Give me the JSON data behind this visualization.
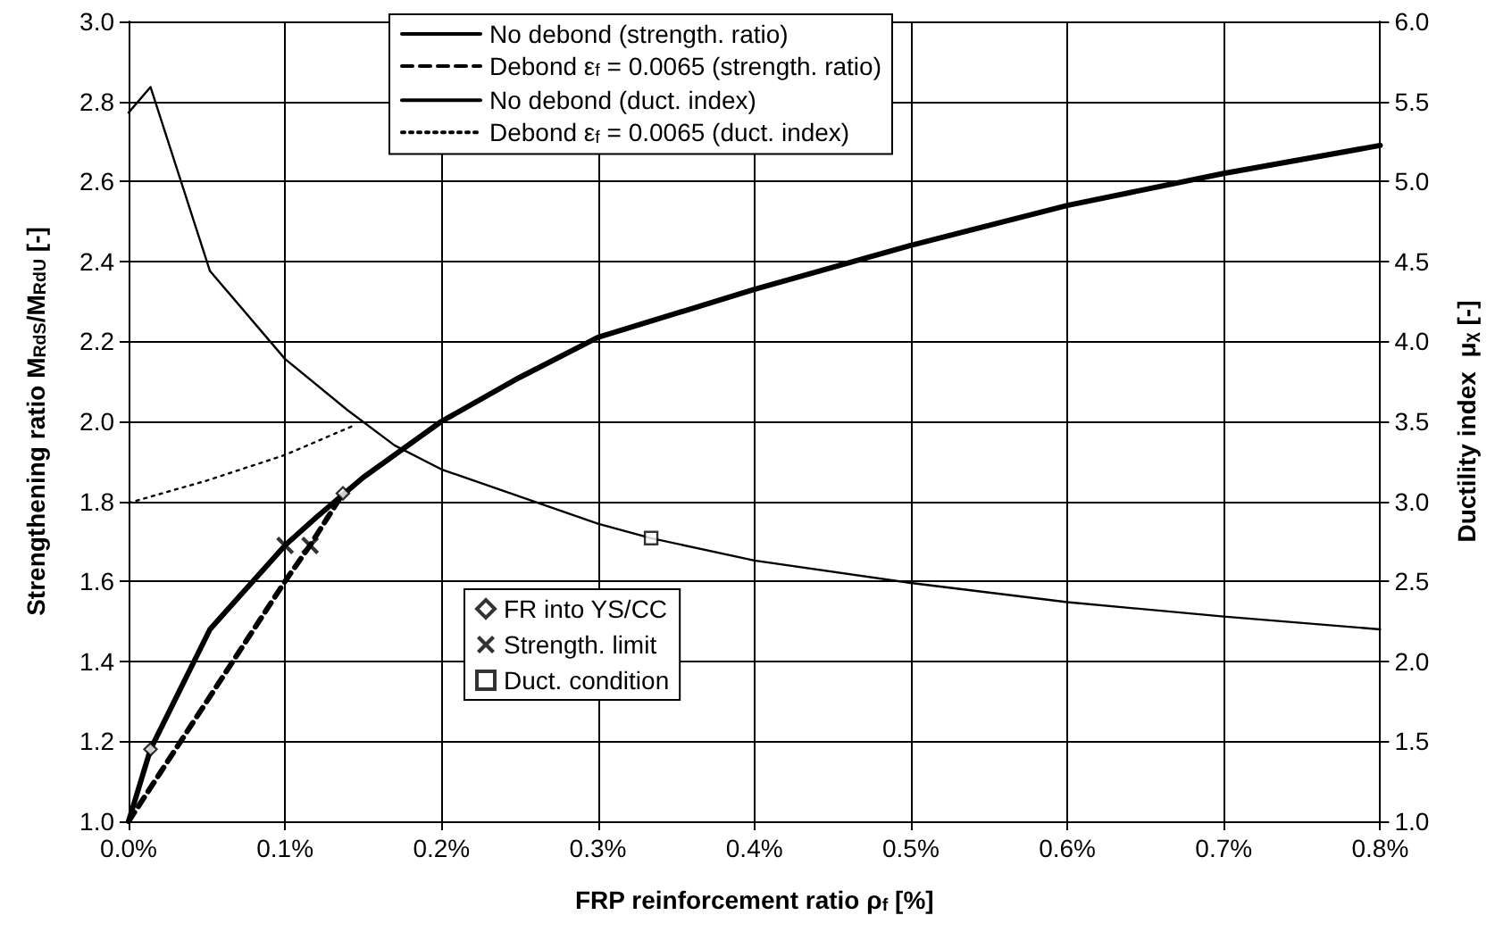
{
  "chart_data": {
    "type": "line",
    "xlabel": "FRP reinforcement ratio ρ$_{f}$ [%]",
    "ylabel": "Strengthening ratio M$_{RdS}$/M$_{RdU}$ [-]",
    "y2label": "Ductility index  μ$_{χ}$ [-]",
    "xlim": [
      0,
      0.8
    ],
    "xticks": [
      {
        "value": 0,
        "label": "0.0%"
      },
      {
        "value": 0.1,
        "label": "0.1%"
      },
      {
        "value": 0.2,
        "label": "0.2%"
      },
      {
        "value": 0.3,
        "label": "0.3%"
      },
      {
        "value": 0.4,
        "label": "0.4%"
      },
      {
        "value": 0.5,
        "label": "0.5%"
      },
      {
        "value": 0.6,
        "label": "0.6%"
      },
      {
        "value": 0.7,
        "label": "0.7%"
      },
      {
        "value": 0.8,
        "label": "0.8%"
      }
    ],
    "ylim": [
      1,
      3
    ],
    "yticks": [
      {
        "value": 1,
        "label": "1.0"
      },
      1.2,
      1.4,
      1.6,
      1.8,
      {
        "value": 2,
        "label": "2.0"
      },
      2.2,
      2.4,
      2.6,
      2.8,
      {
        "value": 3,
        "label": "3.0"
      }
    ],
    "y2lim": [
      1,
      6
    ],
    "y2ticks": [
      {
        "value": 1,
        "label": "1.0"
      },
      1.5,
      {
        "value": 2,
        "label": "2.0"
      },
      2.5,
      {
        "value": 3,
        "label": "3.0"
      },
      3.5,
      {
        "value": 4,
        "label": "4.0"
      },
      4.5,
      {
        "value": 5,
        "label": "5.0"
      },
      5.5,
      {
        "value": 6,
        "label": "6.0"
      }
    ],
    "grid": true,
    "legend": "top left",
    "series": [
      {
        "name": "No debond (strength. ratio)",
        "color": "#000000",
        "line_style": "solid",
        "axis": "y",
        "x": [
          0,
          0.014,
          0.052,
          0.1,
          0.12,
          0.15,
          0.2,
          0.25,
          0.3,
          0.4,
          0.5,
          0.6,
          0.7,
          0.8
        ],
        "values": [
          1.0,
          1.18,
          1.48,
          1.69,
          1.76,
          1.86,
          2.0,
          2.11,
          2.21,
          2.33,
          2.44,
          2.54,
          2.62,
          2.69
        ]
      },
      {
        "name": "Debond ε$_{f}$ = 0.0065 (strength. ratio)",
        "color": "#000000",
        "line_style": "dashed",
        "axis": "y",
        "x": [
          0,
          0.02,
          0.05,
          0.1,
          0.116,
          0.137
        ],
        "values": [
          1.0,
          1.12,
          1.3,
          1.6,
          1.69,
          1.82
        ]
      },
      {
        "name": "No debond (duct. index)",
        "color": "#000000",
        "line_style": "solid",
        "axis": "y2",
        "x": [
          0,
          0.014,
          0.052,
          0.1,
          0.14,
          0.17,
          0.2,
          0.3,
          0.334,
          0.4,
          0.5,
          0.6,
          0.7,
          0.8
        ],
        "values": [
          5.43,
          5.59,
          4.44,
          3.89,
          3.57,
          3.35,
          3.2,
          2.86,
          2.77,
          2.63,
          2.49,
          2.37,
          2.28,
          2.2
        ]
      },
      {
        "name": "Debond ε$_{f}$ = 0.0065 (duct. index)",
        "color": "#000000",
        "line_style": "dotted",
        "axis": "y2",
        "x": [
          0,
          0.05,
          0.1,
          0.143
        ],
        "values": [
          2.99,
          3.13,
          3.29,
          3.47
        ]
      },
      {
        "name": "FR into YS/CC",
        "color": "#000000",
        "type": "scatter",
        "marker": "diamond",
        "axis": "y",
        "x": [
          0.014,
          0.137
        ],
        "values": [
          1.18,
          1.82
        ]
      },
      {
        "name": "Strength. limit",
        "color": "#000000",
        "type": "scatter",
        "marker": "cross",
        "axis": "y",
        "x": [
          0.1,
          0.116
        ],
        "values": [
          1.69,
          1.69
        ]
      },
      {
        "name": "Duct. condition",
        "color": "#000000",
        "type": "scatter",
        "marker": "square",
        "axis": "y2",
        "x": [
          0.334
        ],
        "values": [
          2.77
        ]
      }
    ]
  }
}
